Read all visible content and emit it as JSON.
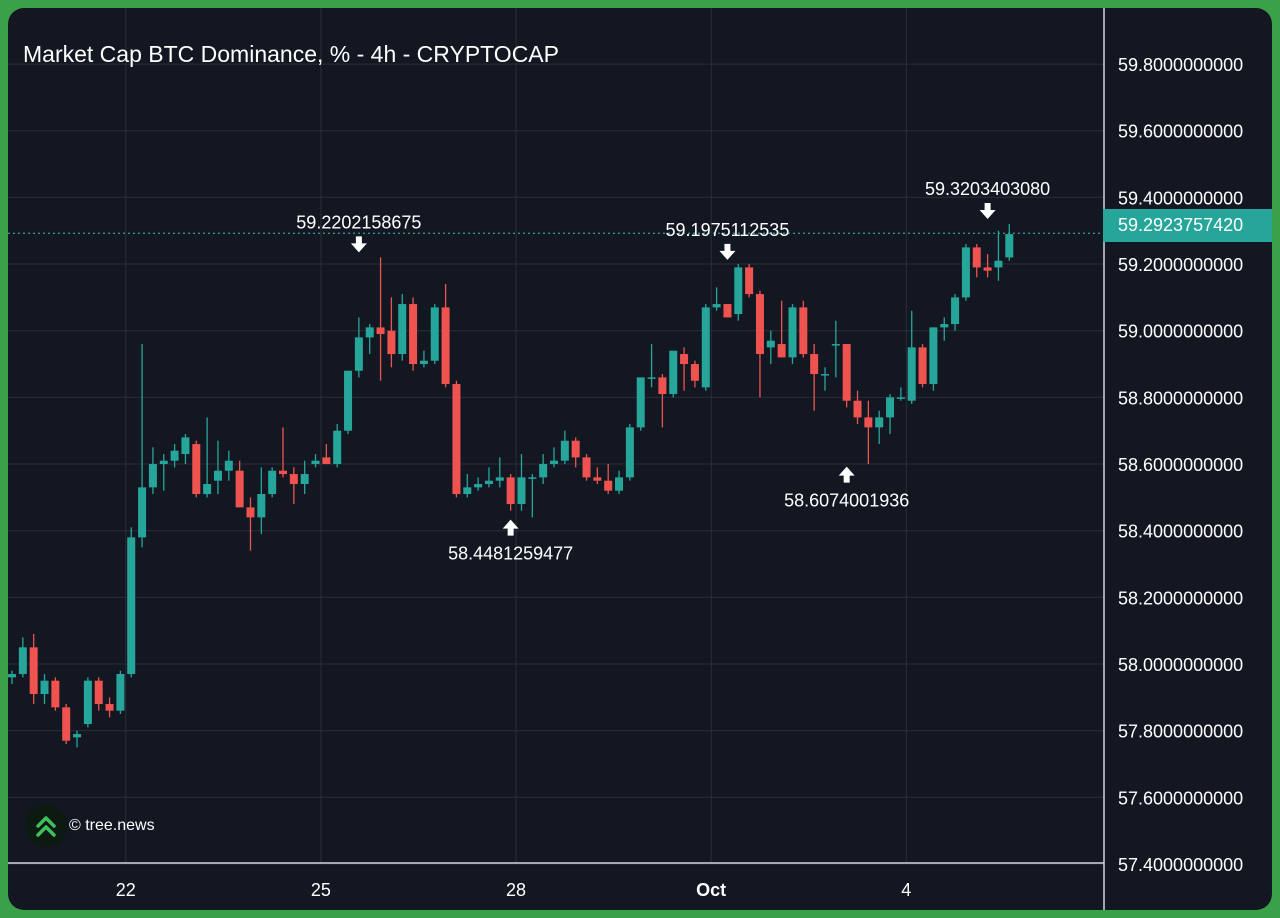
{
  "chart_data": {
    "type": "candlestick",
    "title": "Market Cap BTC Dominance, % - 4h - CRYPTOCAP",
    "source": "© tree.news",
    "colors": {
      "up": "#26a69a",
      "down": "#ef5350",
      "background": "#131722",
      "grid": "#2a2e39",
      "text": "#ffffff",
      "accent": "#3aa14a"
    },
    "ylim": [
      57.4,
      59.8
    ],
    "y_ticks": [
      "59.8000000000",
      "59.6000000000",
      "59.4000000000",
      "59.2000000000",
      "59.0000000000",
      "58.8000000000",
      "58.6000000000",
      "58.4000000000",
      "58.2000000000",
      "58.0000000000",
      "57.8000000000",
      "57.6000000000",
      "57.4000000000"
    ],
    "y_tick_values": [
      59.8,
      59.6,
      59.4,
      59.2,
      59.0,
      58.8,
      58.6,
      58.4,
      58.2,
      58.0,
      57.8,
      57.6,
      57.4
    ],
    "x_ticks": [
      {
        "label": "22",
        "index": 10.5,
        "bold": false
      },
      {
        "label": "25",
        "index": 28.5,
        "bold": false
      },
      {
        "label": "28",
        "index": 46.5,
        "bold": false
      },
      {
        "label": "Oct",
        "index": 64.5,
        "bold": true
      },
      {
        "label": "4",
        "index": 82.5,
        "bold": false
      }
    ],
    "last_price": 59.292375742,
    "last_price_label": "59.2923757420",
    "annotations": [
      {
        "text": "59.2202158675",
        "index": 32,
        "value": 59.2202158675,
        "type": "high"
      },
      {
        "text": "58.4481259477",
        "index": 46,
        "value": 58.4481259477,
        "type": "low"
      },
      {
        "text": "59.1975112535",
        "index": 66,
        "value": 59.1975112535,
        "type": "high"
      },
      {
        "text": "58.6074001936",
        "index": 77,
        "value": 58.6074001936,
        "type": "low"
      },
      {
        "text": "59.3203403080",
        "index": 90,
        "value": 59.320340308,
        "type": "high"
      }
    ],
    "candles": [
      [
        57.96,
        57.98,
        57.94,
        57.97
      ],
      [
        57.97,
        58.08,
        57.96,
        58.05
      ],
      [
        58.05,
        58.09,
        57.88,
        57.91
      ],
      [
        57.91,
        57.97,
        57.88,
        57.95
      ],
      [
        57.95,
        57.96,
        57.86,
        57.87
      ],
      [
        57.87,
        57.88,
        57.76,
        57.77
      ],
      [
        57.78,
        57.8,
        57.75,
        57.79
      ],
      [
        57.82,
        57.96,
        57.81,
        57.95
      ],
      [
        57.95,
        57.96,
        57.86,
        57.88
      ],
      [
        57.88,
        57.9,
        57.84,
        57.86
      ],
      [
        57.86,
        57.98,
        57.85,
        57.97
      ],
      [
        57.97,
        58.41,
        57.96,
        58.38
      ],
      [
        58.38,
        58.96,
        58.35,
        58.53
      ],
      [
        58.53,
        58.65,
        58.51,
        58.6
      ],
      [
        58.6,
        58.63,
        58.52,
        58.61
      ],
      [
        58.61,
        58.66,
        58.59,
        58.64
      ],
      [
        58.63,
        58.69,
        58.6,
        58.68
      ],
      [
        58.66,
        58.67,
        58.5,
        58.51
      ],
      [
        58.51,
        58.74,
        58.5,
        58.54
      ],
      [
        58.55,
        58.67,
        58.51,
        58.58
      ],
      [
        58.58,
        58.64,
        58.55,
        58.61
      ],
      [
        58.58,
        58.61,
        58.47,
        58.47
      ],
      [
        58.47,
        58.5,
        58.34,
        58.44
      ],
      [
        58.44,
        58.59,
        58.39,
        58.51
      ],
      [
        58.51,
        58.59,
        58.5,
        58.58
      ],
      [
        58.58,
        58.71,
        58.56,
        58.57
      ],
      [
        58.57,
        58.59,
        58.48,
        58.54
      ],
      [
        58.54,
        58.61,
        58.51,
        58.57
      ],
      [
        58.6,
        58.63,
        58.59,
        58.61
      ],
      [
        58.62,
        58.66,
        58.6,
        58.6
      ],
      [
        58.6,
        58.72,
        58.59,
        58.7
      ],
      [
        58.7,
        58.88,
        58.69,
        58.88
      ],
      [
        58.88,
        59.04,
        58.86,
        58.98
      ],
      [
        58.98,
        59.02,
        58.93,
        59.01
      ],
      [
        59.01,
        59.22,
        58.85,
        58.99
      ],
      [
        59.0,
        59.1,
        58.89,
        58.93
      ],
      [
        58.93,
        59.11,
        58.91,
        59.08
      ],
      [
        59.08,
        59.1,
        58.88,
        58.9
      ],
      [
        58.9,
        58.94,
        58.89,
        58.91
      ],
      [
        58.91,
        59.08,
        58.9,
        59.07
      ],
      [
        59.07,
        59.14,
        58.83,
        58.84
      ],
      [
        58.84,
        58.85,
        58.5,
        58.51
      ],
      [
        58.51,
        58.57,
        58.5,
        58.53
      ],
      [
        58.53,
        58.56,
        58.52,
        58.54
      ],
      [
        58.54,
        58.59,
        58.53,
        58.55
      ],
      [
        58.55,
        58.62,
        58.53,
        58.56
      ],
      [
        58.56,
        58.57,
        58.46,
        58.48
      ],
      [
        58.48,
        58.63,
        58.46,
        58.56
      ],
      [
        58.56,
        58.57,
        58.44,
        58.56
      ],
      [
        58.56,
        58.63,
        58.54,
        58.6
      ],
      [
        58.6,
        58.65,
        58.59,
        58.61
      ],
      [
        58.61,
        58.7,
        58.6,
        58.67
      ],
      [
        58.67,
        58.68,
        58.59,
        58.62
      ],
      [
        58.62,
        58.63,
        58.55,
        58.56
      ],
      [
        58.56,
        58.59,
        58.54,
        58.55
      ],
      [
        58.55,
        58.6,
        58.51,
        58.52
      ],
      [
        58.52,
        58.58,
        58.51,
        58.56
      ],
      [
        58.56,
        58.72,
        58.55,
        58.71
      ],
      [
        58.71,
        58.86,
        58.7,
        58.86
      ],
      [
        58.86,
        58.96,
        58.83,
        58.86
      ],
      [
        58.86,
        58.87,
        58.71,
        58.81
      ],
      [
        58.81,
        58.92,
        58.8,
        58.94
      ],
      [
        58.93,
        58.95,
        58.82,
        58.9
      ],
      [
        58.9,
        58.91,
        58.83,
        58.85
      ],
      [
        58.83,
        59.08,
        58.82,
        59.07
      ],
      [
        59.07,
        59.13,
        59.06,
        59.08
      ],
      [
        59.08,
        59.08,
        59.04,
        59.04
      ],
      [
        59.05,
        59.2,
        59.03,
        59.19
      ],
      [
        59.19,
        59.2,
        59.1,
        59.11
      ],
      [
        59.11,
        59.12,
        58.8,
        58.93
      ],
      [
        58.95,
        59.0,
        58.9,
        58.97
      ],
      [
        58.96,
        59.09,
        58.92,
        58.92
      ],
      [
        58.92,
        59.08,
        58.9,
        59.07
      ],
      [
        59.07,
        59.09,
        58.92,
        58.93
      ],
      [
        58.93,
        58.96,
        58.76,
        58.87
      ],
      [
        58.87,
        58.89,
        58.82,
        58.87
      ],
      [
        58.96,
        59.03,
        58.86,
        58.96
      ],
      [
        58.96,
        58.96,
        58.77,
        58.79
      ],
      [
        58.79,
        58.82,
        58.72,
        58.74
      ],
      [
        58.74,
        58.79,
        58.6,
        58.71
      ],
      [
        58.71,
        58.76,
        58.66,
        58.74
      ],
      [
        58.74,
        58.81,
        58.69,
        58.8
      ],
      [
        58.8,
        58.83,
        58.79,
        58.8
      ],
      [
        58.79,
        59.06,
        58.78,
        58.95
      ],
      [
        58.95,
        58.96,
        58.83,
        58.84
      ],
      [
        58.84,
        59.01,
        58.82,
        59.01
      ],
      [
        59.01,
        59.04,
        58.97,
        59.02
      ],
      [
        59.02,
        59.11,
        59.0,
        59.1
      ],
      [
        59.1,
        59.26,
        59.09,
        59.25
      ],
      [
        59.25,
        59.26,
        59.16,
        59.19
      ],
      [
        59.19,
        59.23,
        59.16,
        59.18
      ],
      [
        59.19,
        59.3,
        59.15,
        59.21
      ],
      [
        59.22,
        59.32,
        59.21,
        59.29
      ]
    ]
  }
}
